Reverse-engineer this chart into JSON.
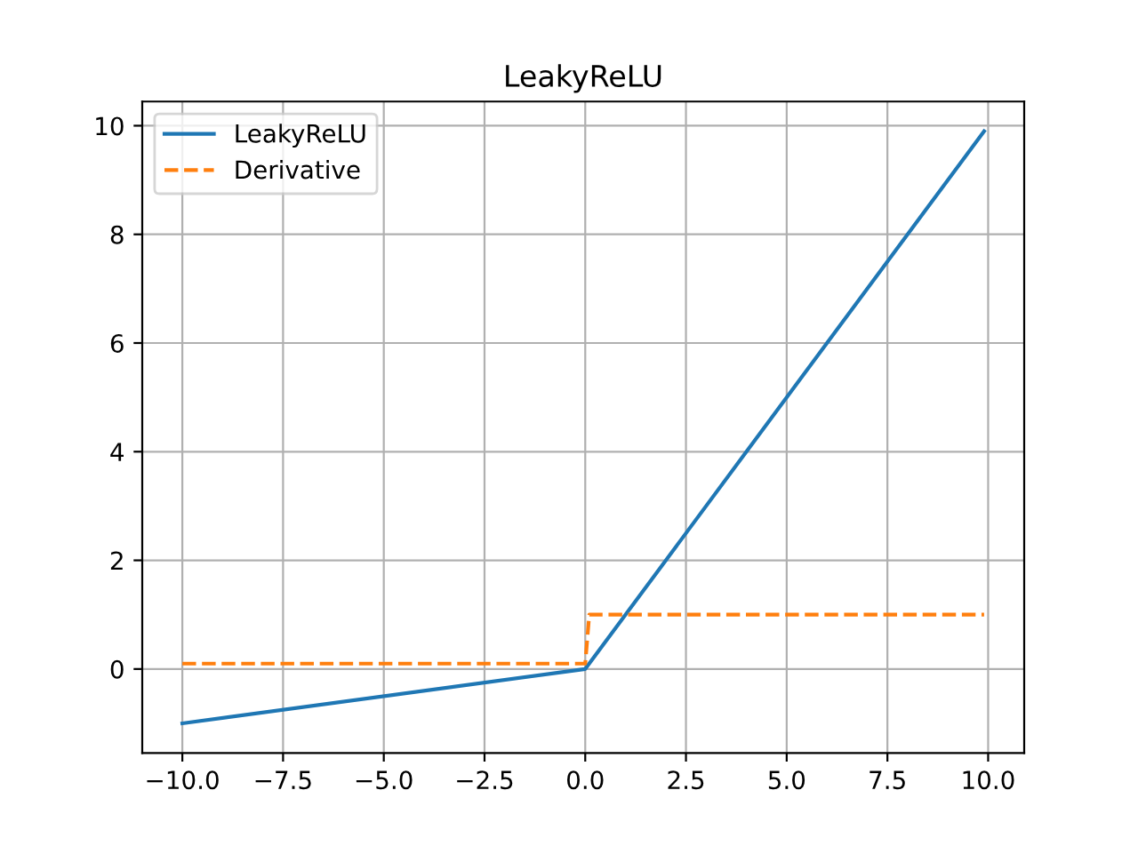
{
  "chart_data": {
    "type": "line",
    "title": "LeakyReLU",
    "series": [
      {
        "name": "LeakyReLU",
        "color": "#1f77b4",
        "line_style": "solid",
        "x": [
          -10,
          0,
          9.9
        ],
        "values": [
          -1,
          0,
          9.9
        ]
      },
      {
        "name": "Derivative",
        "color": "#ff7f0e",
        "line_style": "dashed",
        "x": [
          -10,
          0,
          0.1,
          9.9
        ],
        "values": [
          0.1,
          0.1,
          1,
          1
        ]
      }
    ],
    "xlim": [
      -10.995,
      10.895
    ],
    "ylim": [
      -1.545,
      10.445
    ],
    "xticks": [
      {
        "value": -10,
        "label": "−10.0"
      },
      {
        "value": -7.5,
        "label": "−7.5"
      },
      {
        "value": -5,
        "label": "−5.0"
      },
      {
        "value": -2.5,
        "label": "−2.5"
      },
      {
        "value": 0,
        "label": "0.0"
      },
      {
        "value": 2.5,
        "label": "2.5"
      },
      {
        "value": 5,
        "label": "5.0"
      },
      {
        "value": 7.5,
        "label": "7.5"
      },
      {
        "value": 10,
        "label": "10.0"
      }
    ],
    "yticks": [
      0,
      2,
      4,
      6,
      8,
      10
    ],
    "grid": true,
    "legend": "top left",
    "marker": "none"
  }
}
